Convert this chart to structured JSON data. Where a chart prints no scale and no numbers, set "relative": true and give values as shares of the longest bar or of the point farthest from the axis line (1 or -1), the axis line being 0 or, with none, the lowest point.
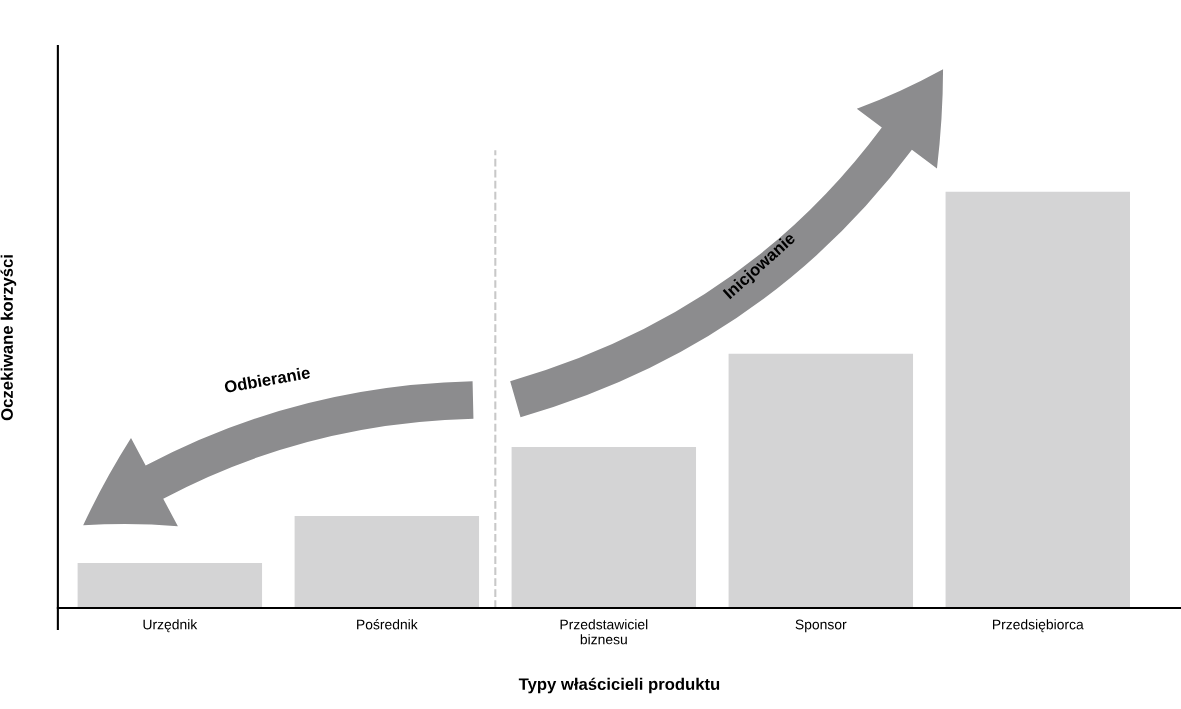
{
  "chart_data": {
    "type": "bar",
    "relative": true,
    "categories": [
      "Urzędnik",
      "Pośrednik",
      "Przedstawiciel\nbiznesu",
      "Sponsor",
      "Przedsiębiorca"
    ],
    "values": [
      0.108,
      0.221,
      0.387,
      0.611,
      1
    ],
    "color": "#d4d4d5",
    "xlabel": "Typy właścicieli produktu",
    "ylabel": "Oczekiwane korzyści",
    "annotations": [
      "Odbieranie",
      "Inicjowanie"
    ],
    "grid": false,
    "legend": false
  }
}
